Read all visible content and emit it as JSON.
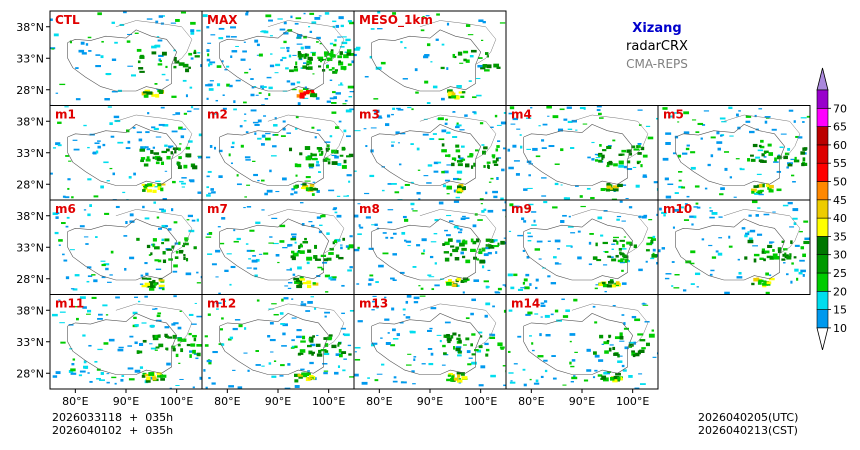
{
  "header": {
    "region": "Xizang",
    "product": "radarCRX",
    "system": "CMA-REPS",
    "region_color": "#0000cc",
    "system_color": "#808080"
  },
  "panels": [
    {
      "label": "CTL",
      "density": 0.35
    },
    {
      "label": "MAX",
      "density": 1.0
    },
    {
      "label": "MESO_1km",
      "density": 0.2
    },
    {
      "label": "m1",
      "density": 0.55
    },
    {
      "label": "m2",
      "density": 0.6
    },
    {
      "label": "m3",
      "density": 0.6
    },
    {
      "label": "m4",
      "density": 0.5
    },
    {
      "label": "m5",
      "density": 0.55
    },
    {
      "label": "m6",
      "density": 0.45
    },
    {
      "label": "m7",
      "density": 0.55
    },
    {
      "label": "m8",
      "density": 0.6
    },
    {
      "label": "m9",
      "density": 0.55
    },
    {
      "label": "m10",
      "density": 0.5
    },
    {
      "label": "m11",
      "density": 0.6
    },
    {
      "label": "m12",
      "density": 0.55
    },
    {
      "label": "m13",
      "density": 0.5
    },
    {
      "label": "m14",
      "density": 0.5
    }
  ],
  "panel_label_color": "#e00000",
  "axes": {
    "lat_ticks": [
      {
        "value": 38,
        "label": "38°N"
      },
      {
        "value": 33,
        "label": "33°N"
      },
      {
        "value": 28,
        "label": "28°N"
      }
    ],
    "lon_ticks": [
      {
        "value": 80,
        "label": "80°E"
      },
      {
        "value": 90,
        "label": "90°E"
      },
      {
        "value": 100,
        "label": "100°E"
      }
    ],
    "lon_range": [
      75,
      105
    ],
    "lat_range": [
      25.5,
      40.5
    ]
  },
  "colorbar": {
    "levels": [
      "10",
      "15",
      "20",
      "25",
      "30",
      "35",
      "40",
      "45",
      "50",
      "55",
      "60",
      "65",
      "70"
    ],
    "colors": [
      "#0099ee",
      "#00ddee",
      "#00cc00",
      "#009900",
      "#007700",
      "#ffff00",
      "#eecc00",
      "#ff8800",
      "#ff0000",
      "#dd0000",
      "#bb0000",
      "#ff00ff",
      "#9900cc",
      "#aa88dd"
    ],
    "under_color": "#ffffff"
  },
  "footer": {
    "init_line1": "2026033118  +  035h",
    "init_line2": "2026040102  +  035h",
    "valid_utc": "2026040205(UTC)",
    "valid_cst": "2026040213(CST)"
  }
}
